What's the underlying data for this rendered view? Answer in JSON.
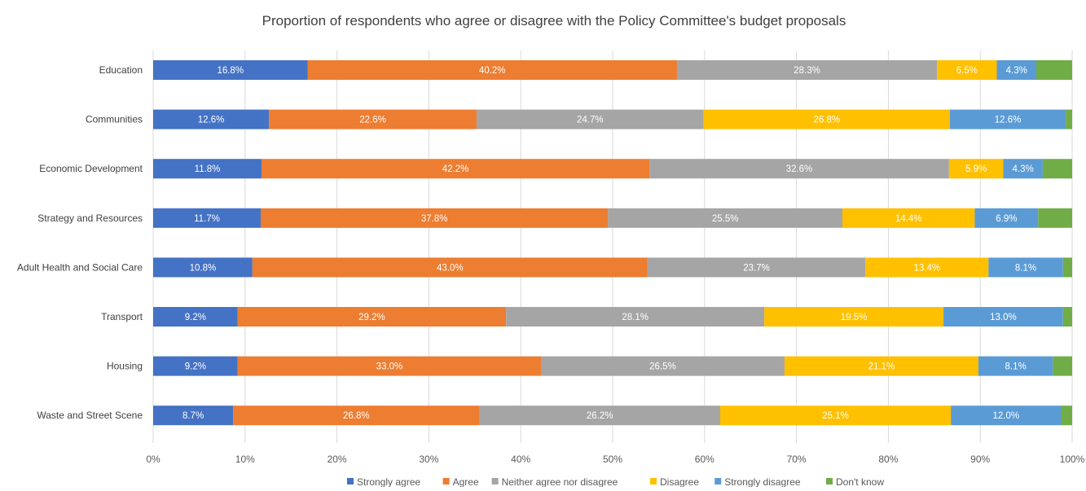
{
  "chart_data": {
    "type": "bar",
    "orientation": "horizontal",
    "stacked": true,
    "title": "Proportion of respondents who agree or disagree with the Policy Committee's budget proposals",
    "categories": [
      "Education",
      "Communities",
      "Economic Development",
      "Strategy and Resources",
      "Adult Health and Social Care",
      "Transport",
      "Housing",
      "Waste and Street Scene"
    ],
    "series": [
      {
        "name": "Strongly agree",
        "color": "#4472c4",
        "values": [
          16.8,
          12.6,
          11.8,
          11.7,
          10.8,
          9.2,
          9.2,
          8.7
        ],
        "labels": [
          "16.8%",
          "12.6%",
          "11.8%",
          "11.7%",
          "10.8%",
          "9.2%",
          "9.2%",
          "8.7%"
        ]
      },
      {
        "name": "Agree",
        "color": "#ed7d31",
        "values": [
          40.2,
          22.6,
          42.2,
          37.8,
          43.0,
          29.2,
          33.0,
          26.8
        ],
        "labels": [
          "40.2%",
          "22.6%",
          "42.2%",
          "37.8%",
          "43.0%",
          "29.2%",
          "33.0%",
          "26.8%"
        ]
      },
      {
        "name": "Neither agree nor disagree",
        "color": "#a5a5a5",
        "values": [
          28.3,
          24.7,
          32.6,
          25.5,
          23.7,
          28.1,
          26.5,
          26.2
        ],
        "labels": [
          "28.3%",
          "24.7%",
          "32.6%",
          "25.5%",
          "23.7%",
          "28.1%",
          "26.5%",
          "26.2%"
        ]
      },
      {
        "name": "Disagree",
        "color": "#ffc000",
        "values": [
          6.5,
          26.8,
          5.9,
          14.4,
          13.4,
          19.5,
          21.1,
          25.1
        ],
        "labels": [
          "6.5%",
          "26.8%",
          "5.9%",
          "14.4%",
          "13.4%",
          "19.5%",
          "21.1%",
          "25.1%"
        ]
      },
      {
        "name": "Strongly disagree",
        "color": "#5b9bd5",
        "values": [
          4.3,
          12.6,
          4.3,
          6.9,
          8.1,
          13.0,
          8.1,
          12.0
        ],
        "labels": [
          "4.3%",
          "12.6%",
          "4.3%",
          "6.9%",
          "8.1%",
          "13.0%",
          "8.1%",
          "12.0%"
        ]
      },
      {
        "name": "Don't know",
        "color": "#70ad47",
        "values": [
          3.9,
          0.7,
          3.2,
          3.7,
          1.0,
          1.0,
          2.1,
          1.2
        ],
        "labels": [
          "",
          "",
          "",
          "",
          "",
          "",
          "",
          ""
        ]
      }
    ],
    "xlim": [
      0,
      100
    ],
    "x_ticks": [
      "0%",
      "10%",
      "20%",
      "30%",
      "40%",
      "50%",
      "60%",
      "70%",
      "80%",
      "90%",
      "100%"
    ],
    "grid": true,
    "legend_position": "bottom"
  }
}
